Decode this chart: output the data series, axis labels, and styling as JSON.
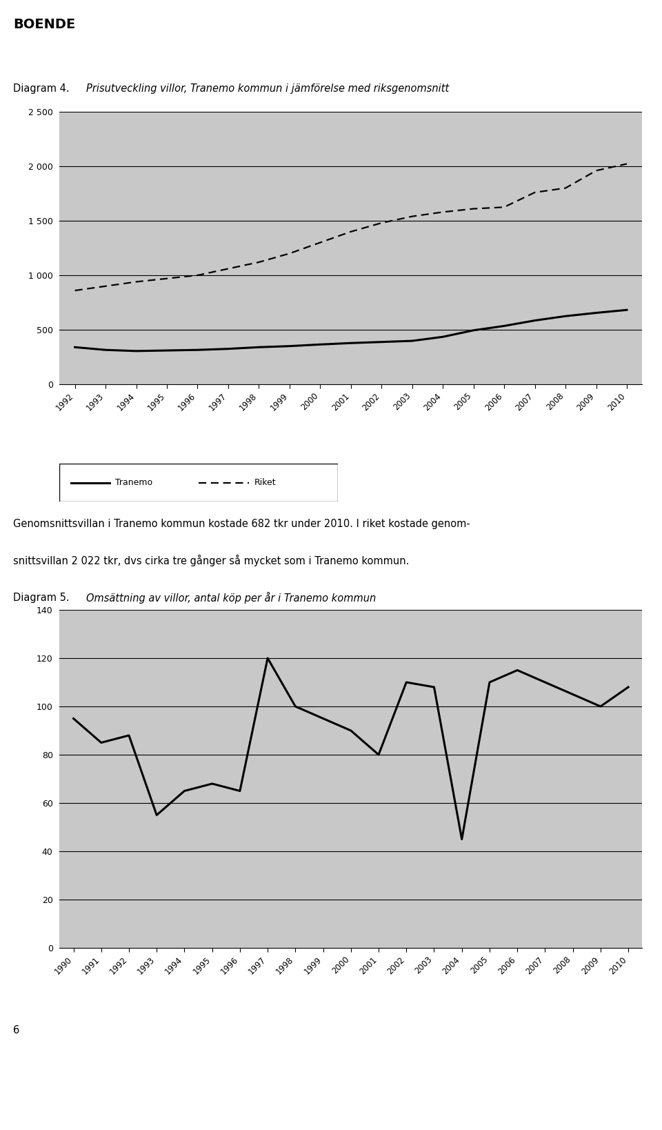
{
  "page_title": "BOENDE",
  "diagram4_label": "Diagram 4.",
  "diagram4_title": "Prisutveckling villor, Tranemo kommun i jämförelse med riksgenomsnitt",
  "diagram4_years": [
    1992,
    1993,
    1994,
    1995,
    1996,
    1997,
    1998,
    1999,
    2000,
    2001,
    2002,
    2003,
    2004,
    2005,
    2006,
    2007,
    2008,
    2009,
    2010
  ],
  "diagram4_tranemo": [
    340,
    315,
    305,
    310,
    315,
    325,
    340,
    350,
    365,
    378,
    388,
    398,
    435,
    495,
    535,
    585,
    625,
    655,
    682
  ],
  "diagram4_riket": [
    860,
    900,
    940,
    970,
    1000,
    1060,
    1120,
    1200,
    1300,
    1400,
    1480,
    1540,
    1580,
    1610,
    1625,
    1760,
    1800,
    1960,
    2022
  ],
  "diagram4_ylim": [
    0,
    2500
  ],
  "diagram4_yticks": [
    0,
    500,
    1000,
    1500,
    2000,
    2500
  ],
  "diagram4_ytick_labels": [
    "0",
    "500",
    "1 000",
    "1 500",
    "2 000",
    "2 500"
  ],
  "diagram4_bg": "#c8c8c8",
  "diagram5_label": "Diagram 5.",
  "diagram5_title": "Omsättning av villor, antal köp per år i Tranemo kommun",
  "diagram5_years": [
    1990,
    1991,
    1992,
    1993,
    1994,
    1995,
    1996,
    1997,
    1998,
    1999,
    2000,
    2001,
    2002,
    2003,
    2004,
    2005,
    2006,
    2007,
    2008,
    2009,
    2010
  ],
  "diagram5_values": [
    95,
    85,
    88,
    55,
    65,
    68,
    65,
    120,
    100,
    95,
    90,
    80,
    110,
    108,
    45,
    110,
    115,
    110,
    105,
    100,
    108
  ],
  "diagram5_ylim": [
    0,
    140
  ],
  "diagram5_yticks": [
    0,
    20,
    40,
    60,
    80,
    100,
    120,
    140
  ],
  "diagram5_bg": "#c8c8c8",
  "text_line1": "Genomsnittsvillan i Tranemo kommun kostade 682 tkr under 2010. I riket kostade genom-",
  "text_line2": "snittsvillan 2 022 tkr, dvs cirka tre gånger så mycket som i Tranemo kommun.",
  "footnote": "6",
  "legend_tranemo": "Tranemo",
  "legend_riket": "Riket"
}
